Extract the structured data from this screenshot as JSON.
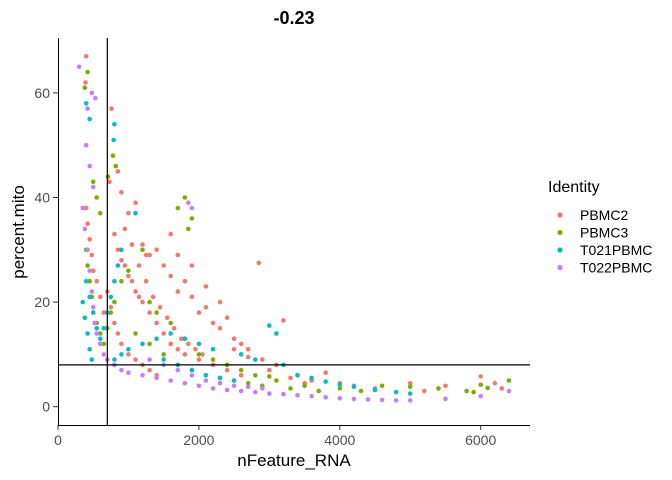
{
  "chart_data": {
    "type": "scatter",
    "title": "-0.23",
    "xlabel": "nFeature_RNA",
    "ylabel": "percent.mito",
    "xlim": [
      0,
      6700
    ],
    "ylim": [
      -3.5,
      70.5
    ],
    "xticks": [
      "0",
      "2000",
      "4000",
      "6000"
    ],
    "xtick_values": [
      0,
      2000,
      4000,
      6000
    ],
    "yticks": [
      "0",
      "20",
      "40",
      "60"
    ],
    "ytick_values": [
      0,
      20,
      40,
      60
    ],
    "grid": false,
    "reference_lines": {
      "vertical_x": 700,
      "horizontal_y": 8
    },
    "legend": {
      "title": "Identity",
      "placement": "right"
    },
    "series": [
      {
        "name": "PBMC2",
        "color": "#F8766D",
        "points": [
          [
            400,
            67
          ],
          [
            390,
            62
          ],
          [
            760,
            57
          ],
          [
            730,
            43
          ],
          [
            850,
            45
          ],
          [
            900,
            41
          ],
          [
            1000,
            37
          ],
          [
            1100,
            39
          ],
          [
            950,
            34
          ],
          [
            1200,
            31
          ],
          [
            1300,
            29
          ],
          [
            1400,
            30
          ],
          [
            1500,
            27
          ],
          [
            1600,
            25
          ],
          [
            1700,
            22
          ],
          [
            1800,
            24
          ],
          [
            1900,
            21
          ],
          [
            2000,
            18
          ],
          [
            2100,
            19
          ],
          [
            2200,
            16
          ],
          [
            2300,
            15
          ],
          [
            2400,
            17
          ],
          [
            2500,
            13
          ],
          [
            2600,
            12
          ],
          [
            2700,
            11
          ],
          [
            2850,
            27.5
          ],
          [
            3200,
            16.5
          ],
          [
            2900,
            9
          ],
          [
            3100,
            8
          ],
          [
            3400,
            6
          ],
          [
            3600,
            5
          ],
          [
            3800,
            6.5
          ],
          [
            4000,
            4.5
          ],
          [
            4200,
            4
          ],
          [
            4500,
            3.5
          ],
          [
            5000,
            4.5
          ],
          [
            5200,
            3
          ],
          [
            5500,
            4
          ],
          [
            6000,
            5.8
          ],
          [
            6200,
            4.5
          ],
          [
            6300,
            3.5
          ],
          [
            900,
            28
          ],
          [
            1000,
            25
          ],
          [
            1100,
            22
          ],
          [
            1200,
            20
          ],
          [
            1300,
            18
          ],
          [
            1400,
            16
          ],
          [
            1500,
            14
          ],
          [
            1600,
            12
          ],
          [
            1700,
            11
          ],
          [
            1800,
            10
          ],
          [
            2000,
            9
          ],
          [
            2200,
            8
          ],
          [
            2400,
            7
          ],
          [
            2600,
            6
          ],
          [
            1150,
            27
          ],
          [
            1250,
            24
          ],
          [
            1350,
            21
          ],
          [
            1450,
            19
          ],
          [
            1550,
            17
          ],
          [
            1650,
            15
          ],
          [
            1750,
            13
          ],
          [
            1850,
            12
          ],
          [
            1950,
            11
          ],
          [
            2050,
            10
          ],
          [
            800,
            33
          ],
          [
            850,
            30
          ],
          [
            950,
            27
          ],
          [
            1050,
            24
          ],
          [
            1150,
            21
          ],
          [
            700,
            22
          ],
          [
            750,
            19
          ],
          [
            800,
            16
          ],
          [
            850,
            14
          ],
          [
            900,
            12
          ],
          [
            1000,
            10
          ],
          [
            1100,
            9
          ],
          [
            1200,
            8
          ],
          [
            1300,
            7
          ],
          [
            1400,
            6
          ],
          [
            400,
            38
          ],
          [
            420,
            35
          ],
          [
            450,
            32
          ],
          [
            480,
            29
          ],
          [
            500,
            26
          ],
          [
            550,
            24
          ],
          [
            600,
            21
          ],
          [
            650,
            18
          ],
          [
            1700,
            29
          ],
          [
            1900,
            27
          ],
          [
            2100,
            23
          ],
          [
            2300,
            20
          ],
          [
            1600,
            33
          ],
          [
            2500,
            11
          ],
          [
            2700,
            9.5
          ],
          [
            3000,
            7
          ],
          [
            3300,
            5.5
          ],
          [
            3500,
            4.5
          ],
          [
            1050,
            31
          ],
          [
            1250,
            29
          ]
        ]
      },
      {
        "name": "PBMC3",
        "color": "#7CAE00",
        "points": [
          [
            420,
            64
          ],
          [
            380,
            61
          ],
          [
            710,
            44
          ],
          [
            780,
            48
          ],
          [
            820,
            46
          ],
          [
            1700,
            38
          ],
          [
            1800,
            40
          ],
          [
            1900,
            36
          ],
          [
            1850,
            34
          ],
          [
            1200,
            30
          ],
          [
            1000,
            26
          ],
          [
            900,
            24
          ],
          [
            800,
            20
          ],
          [
            750,
            18
          ],
          [
            700,
            15
          ],
          [
            1100,
            14
          ],
          [
            1300,
            12
          ],
          [
            1500,
            10
          ],
          [
            1700,
            8
          ],
          [
            1900,
            7
          ],
          [
            2100,
            6
          ],
          [
            2300,
            5.5
          ],
          [
            2500,
            5
          ],
          [
            2700,
            4.5
          ],
          [
            2900,
            4
          ],
          [
            3100,
            5
          ],
          [
            3300,
            3.5
          ],
          [
            3500,
            4
          ],
          [
            3700,
            3
          ],
          [
            4000,
            3.5
          ],
          [
            4300,
            3
          ],
          [
            4600,
            4
          ],
          [
            5000,
            3.8
          ],
          [
            5400,
            3.5
          ],
          [
            5800,
            3
          ],
          [
            6000,
            4.2
          ],
          [
            6100,
            3.6
          ],
          [
            6400,
            5
          ],
          [
            5900,
            2.8
          ],
          [
            400,
            30
          ],
          [
            420,
            27
          ],
          [
            450,
            24
          ],
          [
            480,
            21
          ],
          [
            500,
            18
          ],
          [
            550,
            16
          ],
          [
            600,
            14
          ],
          [
            650,
            12
          ],
          [
            1300,
            20
          ],
          [
            1400,
            18
          ],
          [
            1600,
            16
          ],
          [
            1800,
            13
          ],
          [
            2000,
            10
          ],
          [
            2200,
            9
          ],
          [
            2400,
            8
          ],
          [
            2600,
            7
          ],
          [
            2800,
            6
          ],
          [
            3000,
            5.8
          ],
          [
            500,
            43
          ],
          [
            550,
            40
          ],
          [
            600,
            37
          ]
        ]
      },
      {
        "name": "T021PBMC",
        "color": "#00BFC4",
        "points": [
          [
            400,
            58
          ],
          [
            450,
            55
          ],
          [
            800,
            54
          ],
          [
            790,
            51
          ],
          [
            1100,
            37
          ],
          [
            900,
            30
          ],
          [
            850,
            27
          ],
          [
            800,
            24
          ],
          [
            750,
            21
          ],
          [
            700,
            18
          ],
          [
            650,
            15
          ],
          [
            600,
            12
          ],
          [
            3000,
            15.5
          ],
          [
            3100,
            14
          ],
          [
            2600,
            10
          ],
          [
            2800,
            9
          ],
          [
            3200,
            8
          ],
          [
            3400,
            6
          ],
          [
            3600,
            5.5
          ],
          [
            3800,
            4.8
          ],
          [
            4000,
            4.2
          ],
          [
            4200,
            3.8
          ],
          [
            4500,
            3.2
          ],
          [
            4800,
            2.8
          ],
          [
            5000,
            2.5
          ],
          [
            2200,
            11
          ],
          [
            2000,
            12
          ],
          [
            1800,
            13
          ],
          [
            1600,
            14
          ],
          [
            1400,
            13
          ],
          [
            1200,
            12
          ],
          [
            1000,
            11
          ],
          [
            900,
            10
          ],
          [
            800,
            9
          ],
          [
            1500,
            9
          ],
          [
            1700,
            8
          ],
          [
            1900,
            7
          ],
          [
            2100,
            6
          ],
          [
            2300,
            5.5
          ],
          [
            2500,
            5
          ],
          [
            400,
            24
          ],
          [
            450,
            21
          ],
          [
            500,
            18
          ],
          [
            550,
            15
          ],
          [
            600,
            13
          ],
          [
            350,
            20
          ],
          [
            380,
            17
          ],
          [
            420,
            14
          ],
          [
            450,
            11
          ],
          [
            480,
            9
          ]
        ]
      },
      {
        "name": "T022PBMC",
        "color": "#C77CFF",
        "points": [
          [
            300,
            65
          ],
          [
            480,
            60
          ],
          [
            530,
            59
          ],
          [
            420,
            57
          ],
          [
            1850,
            39
          ],
          [
            1900,
            38
          ],
          [
            400,
            50
          ],
          [
            450,
            46
          ],
          [
            500,
            42
          ],
          [
            350,
            38
          ],
          [
            380,
            34
          ],
          [
            420,
            30
          ],
          [
            450,
            26
          ],
          [
            480,
            22
          ],
          [
            500,
            19
          ],
          [
            520,
            16
          ],
          [
            550,
            14
          ],
          [
            600,
            12
          ],
          [
            650,
            10
          ],
          [
            700,
            9
          ],
          [
            800,
            8
          ],
          [
            900,
            7
          ],
          [
            1000,
            6.5
          ],
          [
            1200,
            6
          ],
          [
            1400,
            5.5
          ],
          [
            1600,
            5
          ],
          [
            1800,
            4.5
          ],
          [
            2000,
            4
          ],
          [
            2200,
            3.5
          ],
          [
            2400,
            3.2
          ],
          [
            2600,
            3
          ],
          [
            2800,
            2.8
          ],
          [
            3000,
            2.5
          ],
          [
            3200,
            2.4
          ],
          [
            3400,
            2.2
          ],
          [
            3600,
            2
          ],
          [
            3800,
            1.8
          ],
          [
            4000,
            1.6
          ],
          [
            4200,
            1.5
          ],
          [
            4400,
            1.4
          ],
          [
            4600,
            1.3
          ],
          [
            4800,
            1.2
          ],
          [
            5000,
            1.2
          ],
          [
            5500,
            1.5
          ],
          [
            6000,
            2
          ],
          [
            6400,
            3
          ],
          [
            1300,
            9
          ],
          [
            1500,
            8
          ],
          [
            1700,
            7
          ],
          [
            1900,
            6
          ],
          [
            2100,
            5
          ],
          [
            2300,
            4.5
          ],
          [
            2500,
            4
          ],
          [
            2700,
            3.8
          ],
          [
            2900,
            3.5
          ]
        ]
      }
    ]
  }
}
